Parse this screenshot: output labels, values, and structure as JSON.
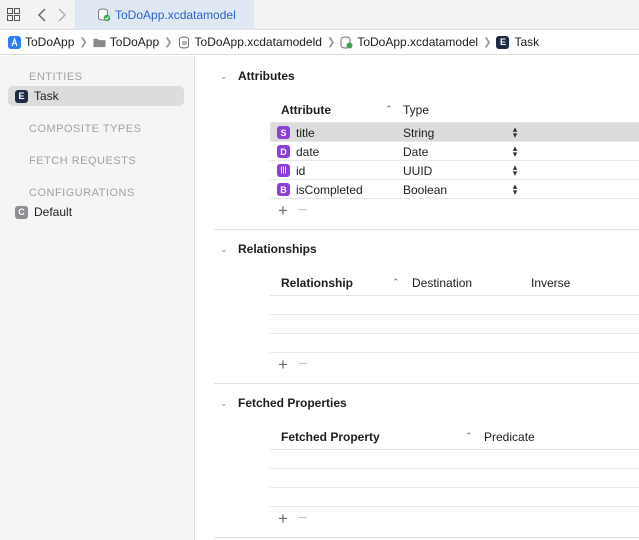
{
  "tab": {
    "label": "ToDoApp.xcdatamodel"
  },
  "breadcrumb": [
    {
      "label": "ToDoApp",
      "icon": "app-icon"
    },
    {
      "label": "ToDoApp",
      "icon": "folder-icon"
    },
    {
      "label": "ToDoApp.xcdatamodeld",
      "icon": "datamodel-bundle-icon"
    },
    {
      "label": "ToDoApp.xcdatamodel",
      "icon": "datamodel-icon"
    },
    {
      "label": "Task",
      "icon": "entity-icon"
    }
  ],
  "sidebar": {
    "entities_header": "ENTITIES",
    "entity": {
      "badge": "E",
      "label": "Task"
    },
    "composite_header": "COMPOSITE TYPES",
    "fetch_header": "FETCH REQUESTS",
    "config_header": "CONFIGURATIONS",
    "config": {
      "badge": "C",
      "label": "Default"
    }
  },
  "attributes": {
    "title": "Attributes",
    "col_attribute": "Attribute",
    "col_type": "Type",
    "rows": [
      {
        "badge": "S",
        "name": "title",
        "type": "String"
      },
      {
        "badge": "D",
        "name": "date",
        "type": "Date"
      },
      {
        "badge": "|||",
        "name": "id",
        "type": "UUID"
      },
      {
        "badge": "B",
        "name": "isCompleted",
        "type": "Boolean"
      }
    ]
  },
  "relationships": {
    "title": "Relationships",
    "col_relationship": "Relationship",
    "col_destination": "Destination",
    "col_inverse": "Inverse"
  },
  "fetched": {
    "title": "Fetched Properties",
    "col_property": "Fetched Property",
    "col_predicate": "Predicate"
  },
  "colors": {
    "accent": "#2a63c7",
    "attr_badge": "#8b3fd8",
    "entity_badge": "#1f2b45"
  }
}
